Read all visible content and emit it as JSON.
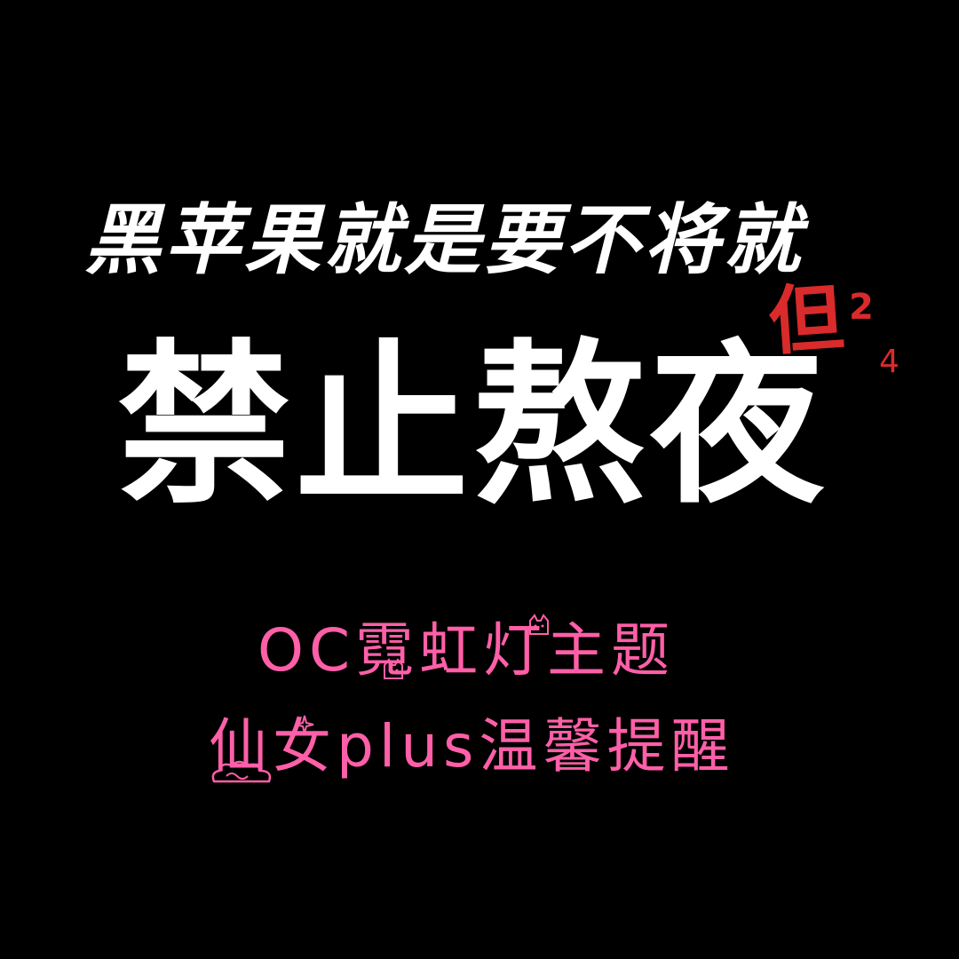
{
  "line1": "黑苹果就是要不将就",
  "main_title": "禁止熬夜",
  "mark": {
    "char": "但",
    "num_a": "2",
    "num_b": "4"
  },
  "subtitle_line1": "OC霓虹灯主题",
  "subtitle_line2": "仙女plus温馨提醒",
  "icons": [
    "cat-icon",
    "cat-icon",
    "cloud-icon",
    "sparkle-icon"
  ],
  "colors": {
    "background": "#000000",
    "title": "#ffffff",
    "accent_red": "#d92b2b",
    "accent_pink": "#ff5fa8"
  }
}
